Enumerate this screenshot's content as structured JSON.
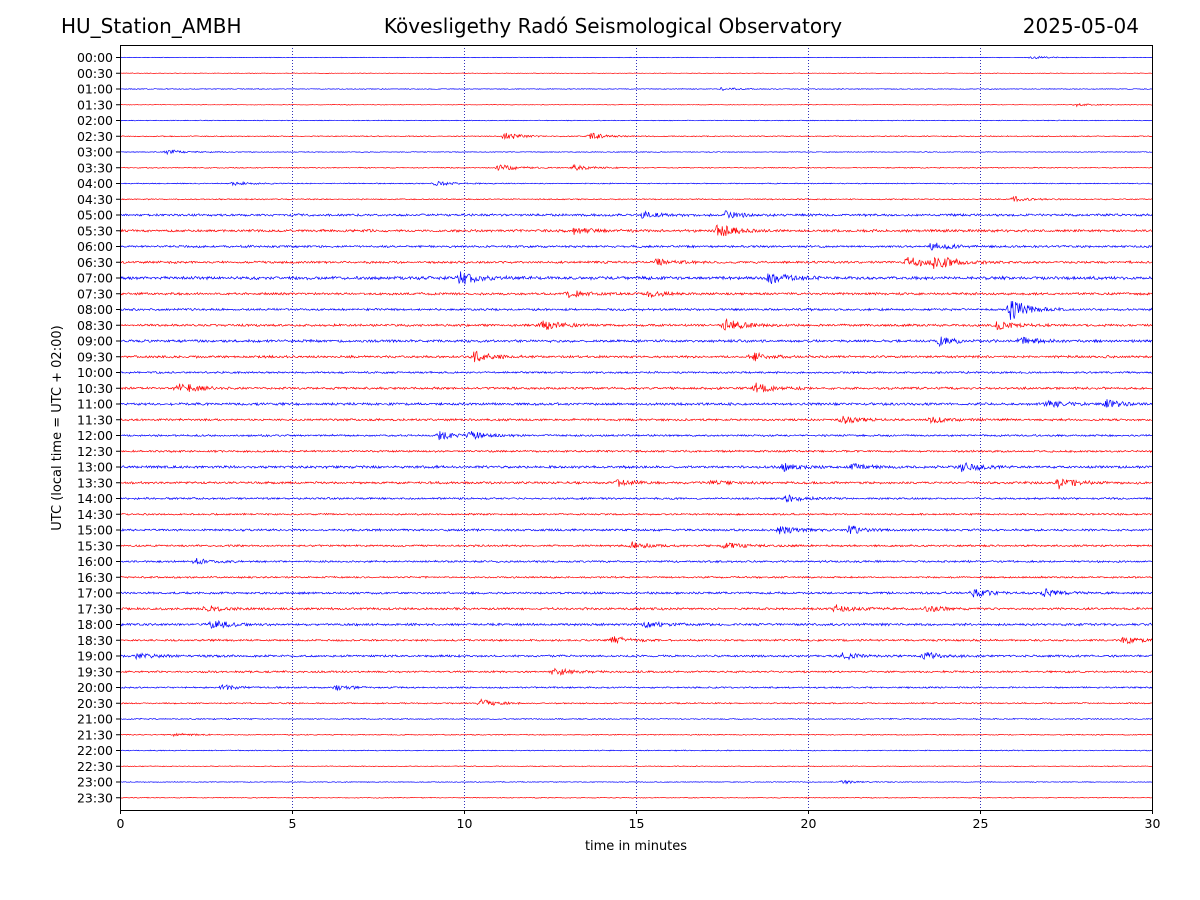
{
  "header": {
    "station": "HU_Station_AMBH",
    "title": "Kövesligethy Radó Seismological Observatory",
    "date": "2025-05-04"
  },
  "chart_data": {
    "type": "line",
    "title": "Kövesligethy Radó Seismological Observatory",
    "xlabel": "time in minutes",
    "ylabel": "UTC (local time = UTC + 02:00)",
    "xlim": [
      0,
      30
    ],
    "x_ticks": [
      0,
      5,
      10,
      15,
      20,
      25,
      30
    ],
    "grid": "vertical dotted lines at each x tick",
    "colors": {
      "even_row": "#0000ff",
      "odd_row": "#ff0000",
      "grid": "#0000aa"
    },
    "rows": [
      "00:00",
      "00:30",
      "01:00",
      "01:30",
      "02:00",
      "02:30",
      "03:00",
      "03:30",
      "04:00",
      "04:30",
      "05:00",
      "05:30",
      "06:00",
      "06:30",
      "07:00",
      "07:30",
      "08:00",
      "08:30",
      "09:00",
      "09:30",
      "10:00",
      "10:30",
      "11:00",
      "11:30",
      "12:00",
      "12:30",
      "13:00",
      "13:30",
      "14:00",
      "14:30",
      "15:00",
      "15:30",
      "16:00",
      "16:30",
      "17:00",
      "17:30",
      "18:00",
      "18:30",
      "19:00",
      "19:30",
      "20:00",
      "20:30",
      "21:00",
      "21:30",
      "22:00",
      "22:30",
      "23:00",
      "23:30"
    ],
    "noise_level": [
      0.3,
      0.3,
      0.4,
      0.3,
      0.4,
      0.5,
      0.4,
      0.5,
      0.5,
      0.6,
      1.2,
      1.3,
      1.1,
      1.2,
      1.6,
      1.2,
      1.1,
      1.2,
      1.3,
      1.2,
      1.0,
      1.2,
      1.3,
      1.1,
      1.0,
      1.0,
      1.3,
      1.2,
      1.0,
      0.9,
      1.1,
      1.0,
      1.0,
      0.9,
      1.1,
      1.2,
      1.2,
      1.0,
      1.1,
      1.0,
      0.8,
      0.7,
      0.6,
      0.5,
      0.5,
      0.4,
      0.4,
      0.4
    ],
    "events": [
      {
        "row": "00:00",
        "t": 26.5,
        "amp": 1.5
      },
      {
        "row": "01:00",
        "t": 17.5,
        "amp": 1.3
      },
      {
        "row": "01:30",
        "t": 27.8,
        "amp": 1.5
      },
      {
        "row": "02:30",
        "t": 11.2,
        "amp": 3.5
      },
      {
        "row": "02:30",
        "t": 13.7,
        "amp": 3
      },
      {
        "row": "03:00",
        "t": 1.4,
        "amp": 2.5
      },
      {
        "row": "03:30",
        "t": 11.0,
        "amp": 3.5
      },
      {
        "row": "03:30",
        "t": 13.2,
        "amp": 2.5
      },
      {
        "row": "04:00",
        "t": 3.3,
        "amp": 2
      },
      {
        "row": "04:00",
        "t": 9.2,
        "amp": 2
      },
      {
        "row": "04:30",
        "t": 26.0,
        "amp": 2.5
      },
      {
        "row": "05:00",
        "t": 15.2,
        "amp": 3
      },
      {
        "row": "05:00",
        "t": 17.6,
        "amp": 3.5
      },
      {
        "row": "05:30",
        "t": 17.4,
        "amp": 7
      },
      {
        "row": "05:30",
        "t": 13.2,
        "amp": 3
      },
      {
        "row": "06:00",
        "t": 23.6,
        "amp": 4
      },
      {
        "row": "06:30",
        "t": 22.9,
        "amp": 6
      },
      {
        "row": "06:30",
        "t": 23.7,
        "amp": 7
      },
      {
        "row": "06:30",
        "t": 15.6,
        "amp": 3
      },
      {
        "row": "07:00",
        "t": 9.9,
        "amp": 7
      },
      {
        "row": "07:00",
        "t": 18.9,
        "amp": 6
      },
      {
        "row": "07:30",
        "t": 13.0,
        "amp": 4
      },
      {
        "row": "07:30",
        "t": 15.4,
        "amp": 3
      },
      {
        "row": "08:00",
        "t": 25.9,
        "amp": 11
      },
      {
        "row": "08:30",
        "t": 17.6,
        "amp": 6
      },
      {
        "row": "08:30",
        "t": 12.3,
        "amp": 5
      },
      {
        "row": "08:30",
        "t": 25.5,
        "amp": 4
      },
      {
        "row": "09:00",
        "t": 23.8,
        "amp": 4
      },
      {
        "row": "09:00",
        "t": 26.2,
        "amp": 4
      },
      {
        "row": "09:30",
        "t": 10.3,
        "amp": 5
      },
      {
        "row": "09:30",
        "t": 18.4,
        "amp": 4
      },
      {
        "row": "10:30",
        "t": 1.7,
        "amp": 6
      },
      {
        "row": "10:30",
        "t": 18.5,
        "amp": 5
      },
      {
        "row": "11:00",
        "t": 28.7,
        "amp": 4
      },
      {
        "row": "11:00",
        "t": 27.0,
        "amp": 3
      },
      {
        "row": "11:30",
        "t": 21.0,
        "amp": 4
      },
      {
        "row": "11:30",
        "t": 23.6,
        "amp": 3
      },
      {
        "row": "12:00",
        "t": 9.3,
        "amp": 4
      },
      {
        "row": "12:00",
        "t": 10.2,
        "amp": 3
      },
      {
        "row": "13:00",
        "t": 24.5,
        "amp": 5
      },
      {
        "row": "13:00",
        "t": 19.3,
        "amp": 3.5
      },
      {
        "row": "13:00",
        "t": 21.3,
        "amp": 3
      },
      {
        "row": "13:30",
        "t": 27.3,
        "amp": 6
      },
      {
        "row": "13:30",
        "t": 14.5,
        "amp": 3
      },
      {
        "row": "13:30",
        "t": 17.2,
        "amp": 3
      },
      {
        "row": "14:00",
        "t": 19.4,
        "amp": 3
      },
      {
        "row": "15:00",
        "t": 19.2,
        "amp": 4
      },
      {
        "row": "15:00",
        "t": 21.2,
        "amp": 4
      },
      {
        "row": "15:30",
        "t": 14.9,
        "amp": 4
      },
      {
        "row": "15:30",
        "t": 17.6,
        "amp": 3
      },
      {
        "row": "16:00",
        "t": 2.2,
        "amp": 2.5
      },
      {
        "row": "17:00",
        "t": 24.8,
        "amp": 4
      },
      {
        "row": "17:00",
        "t": 26.9,
        "amp": 3.5
      },
      {
        "row": "17:30",
        "t": 20.8,
        "amp": 3.5
      },
      {
        "row": "17:30",
        "t": 2.5,
        "amp": 3
      },
      {
        "row": "17:30",
        "t": 23.5,
        "amp": 2.5
      },
      {
        "row": "18:00",
        "t": 2.7,
        "amp": 4
      },
      {
        "row": "18:00",
        "t": 15.3,
        "amp": 3
      },
      {
        "row": "18:30",
        "t": 14.3,
        "amp": 4
      },
      {
        "row": "18:30",
        "t": 29.2,
        "amp": 3
      },
      {
        "row": "19:00",
        "t": 21.0,
        "amp": 3.5
      },
      {
        "row": "19:00",
        "t": 23.4,
        "amp": 3.5
      },
      {
        "row": "19:00",
        "t": 0.5,
        "amp": 2.5
      },
      {
        "row": "19:30",
        "t": 12.6,
        "amp": 4
      },
      {
        "row": "20:00",
        "t": 3.0,
        "amp": 2.5
      },
      {
        "row": "20:00",
        "t": 6.3,
        "amp": 2.5
      },
      {
        "row": "20:30",
        "t": 10.5,
        "amp": 3.5
      },
      {
        "row": "21:30",
        "t": 1.6,
        "amp": 1.5
      },
      {
        "row": "23:00",
        "t": 21.0,
        "amp": 1.5
      }
    ]
  }
}
